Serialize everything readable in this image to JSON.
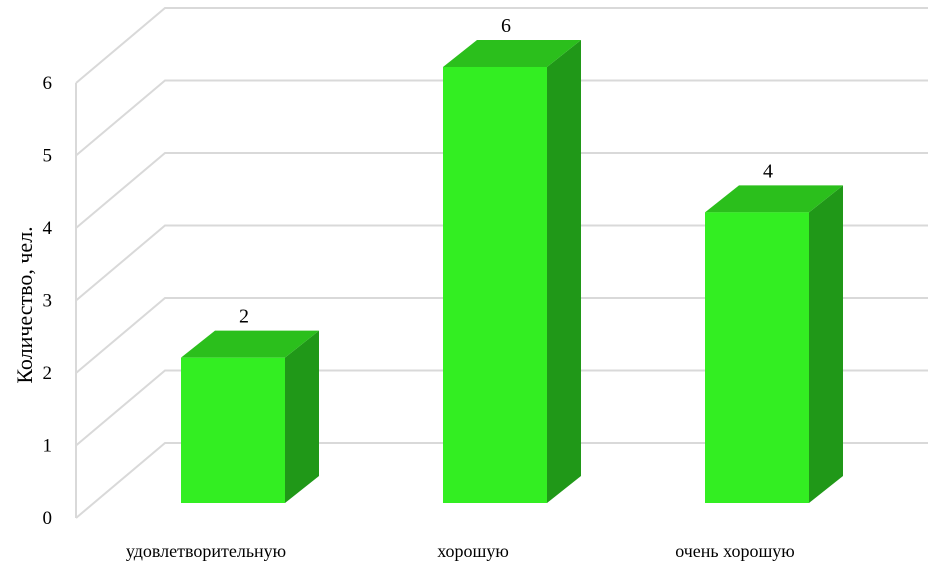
{
  "chart_data": {
    "type": "bar",
    "style": "3d-column",
    "categories": [
      "удовлетворительную",
      "хорошую",
      "очень хорошую"
    ],
    "values": [
      2,
      6,
      4
    ],
    "ylabel": "Количество, чел.",
    "ylim": [
      0,
      6
    ],
    "yticks": [
      0,
      1,
      2,
      3,
      4,
      5,
      6
    ],
    "grid": true,
    "data_labels": true,
    "colors": {
      "front": "#33ee22",
      "top": "#2bbf1c",
      "side": "#209818",
      "grid": "#d9d9d9"
    }
  }
}
